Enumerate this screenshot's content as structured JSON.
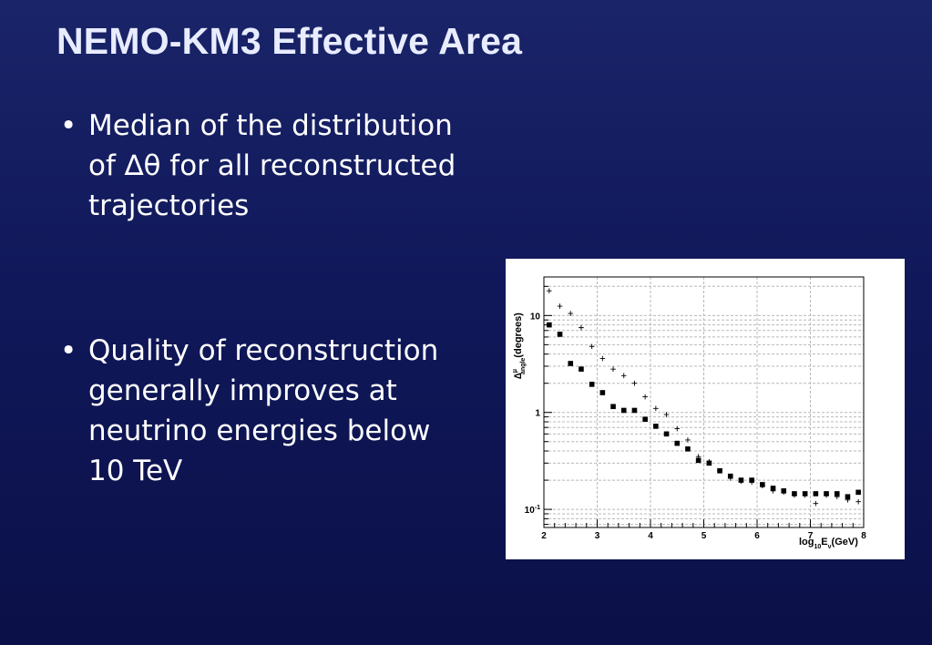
{
  "slide": {
    "title": "NEMO-KM3 Effective Area",
    "bullets": [
      {
        "marker": "•",
        "lines": [
          "Median of the distribution",
          "of ∆θ for all reconstructed",
          "trajectories"
        ]
      },
      {
        "marker": "•",
        "lines": [
          "Quality of reconstruction",
          "generally improves at",
          "neutrino energies below",
          "10 TeV"
        ]
      }
    ]
  },
  "chart_data": {
    "type": "scatter",
    "title": "",
    "ylabel_parts": {
      "main": "∆",
      "superscript": "μ",
      "subscript": "angle",
      "suffix": "(degrees)"
    },
    "xlabel_parts": {
      "main": "log",
      "subscript1": "10",
      "mid": "E",
      "subscript2": "ν",
      "suffix": "(GeV)"
    },
    "x_ticks": [
      "2",
      "3",
      "4",
      "5",
      "6",
      "7",
      "8"
    ],
    "y_ticks": [
      "10",
      "1",
      "10"
    ],
    "y_tick_exponents": [
      "",
      "",
      "-1"
    ],
    "xlim": [
      2,
      8
    ],
    "ylim": [
      0.065,
      25
    ],
    "yscale": "log",
    "grid": true,
    "series": [
      {
        "marker": "square",
        "x": [
          2.1,
          2.3,
          2.5,
          2.7,
          2.9,
          3.1,
          3.3,
          3.5,
          3.7,
          3.9,
          4.1,
          4.3,
          4.5,
          4.7,
          4.9,
          5.1,
          5.3,
          5.5,
          5.7,
          5.9,
          6.1,
          6.3,
          6.5,
          6.7,
          6.9,
          7.1,
          7.3,
          7.5,
          7.7,
          7.9
        ],
        "y": [
          8.0,
          6.4,
          3.2,
          2.8,
          1.95,
          1.6,
          1.15,
          1.05,
          1.05,
          0.85,
          0.72,
          0.6,
          0.48,
          0.42,
          0.32,
          0.3,
          0.25,
          0.22,
          0.2,
          0.2,
          0.18,
          0.165,
          0.155,
          0.145,
          0.145,
          0.145,
          0.145,
          0.145,
          0.135,
          0.15
        ]
      },
      {
        "marker": "plus",
        "x": [
          2.1,
          2.3,
          2.5,
          2.7,
          2.9,
          3.1,
          3.3,
          3.5,
          3.7,
          3.9,
          4.1,
          4.3,
          4.5,
          4.7,
          4.9,
          5.1,
          5.3,
          5.5,
          5.7,
          5.9,
          6.1,
          6.3,
          6.5,
          6.7,
          6.9,
          7.1,
          7.3,
          7.5,
          7.7,
          7.9
        ],
        "y": [
          18.0,
          12.5,
          10.5,
          7.5,
          4.8,
          3.6,
          2.8,
          2.4,
          2.0,
          1.45,
          1.1,
          0.95,
          0.68,
          0.52,
          0.35,
          0.31,
          0.25,
          0.21,
          0.195,
          0.19,
          0.175,
          0.155,
          0.15,
          0.14,
          0.14,
          0.115,
          0.14,
          0.135,
          0.125,
          0.12
        ]
      }
    ]
  }
}
